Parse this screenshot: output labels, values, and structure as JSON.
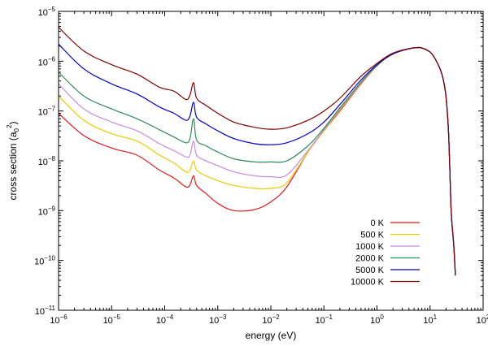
{
  "chart_data": {
    "type": "line",
    "title": "",
    "xlabel": "energy (eV)",
    "ylabel": {
      "main": "cross section (a",
      "sub": "0",
      "sup": "2",
      "close": ")"
    },
    "x_scale": "log",
    "y_scale": "log",
    "xlim": [
      1e-06,
      100
    ],
    "ylim": [
      1e-11,
      1e-05
    ],
    "x_ticks": [
      {
        "value": 1e-06,
        "base": "10",
        "exp": "−6"
      },
      {
        "value": 1e-05,
        "base": "10",
        "exp": "−5"
      },
      {
        "value": 0.0001,
        "base": "10",
        "exp": "−4"
      },
      {
        "value": 0.001,
        "base": "10",
        "exp": "−3"
      },
      {
        "value": 0.01,
        "base": "10",
        "exp": "−2"
      },
      {
        "value": 0.1,
        "base": "10",
        "exp": "−1"
      },
      {
        "value": 1,
        "base": "10",
        "exp": "0"
      },
      {
        "value": 10,
        "base": "10",
        "exp": "1"
      },
      {
        "value": 100,
        "base": "10",
        "exp": "2"
      }
    ],
    "y_ticks": [
      {
        "value": 1e-11,
        "base": "10",
        "exp": "−11"
      },
      {
        "value": 1e-10,
        "base": "10",
        "exp": "−10"
      },
      {
        "value": 1e-09,
        "base": "10",
        "exp": "−9"
      },
      {
        "value": 1e-08,
        "base": "10",
        "exp": "−8"
      },
      {
        "value": 1e-07,
        "base": "10",
        "exp": "−7"
      },
      {
        "value": 1e-06,
        "base": "10",
        "exp": "−6"
      },
      {
        "value": 1e-05,
        "base": "10",
        "exp": "−5"
      }
    ],
    "legend_position": "lower-right",
    "x": [
      1e-06,
      3e-06,
      1e-05,
      3e-05,
      8e-05,
      0.00015,
      0.00025,
      0.0003,
      0.00035,
      0.0004,
      0.0006,
      0.001,
      0.002,
      0.005,
      0.01,
      0.02,
      0.05,
      0.1,
      0.2,
      0.5,
      1,
      2,
      5,
      8,
      12,
      18,
      22,
      25,
      28,
      30
    ],
    "series": [
      {
        "name": "0 K",
        "color": "#e41a1c",
        "values": [
          9e-08,
          3.2e-08,
          1.8e-08,
          1.3e-08,
          6.5e-09,
          4.5e-09,
          3e-09,
          3.3e-09,
          5e-09,
          3.2e-09,
          2.2e-09,
          1.4e-09,
          1e-09,
          1.05e-09,
          1.5e-09,
          3e-09,
          1.5e-08,
          4e-08,
          1e-07,
          3.5e-07,
          8e-07,
          1.4e-06,
          1.85e-06,
          1.75e-06,
          1.2e-06,
          4e-07,
          5e-08,
          1e-09,
          2e-10,
          5e-11
        ]
      },
      {
        "name": "500 K",
        "color": "#f2c800",
        "values": [
          2e-07,
          6.5e-08,
          3.5e-08,
          2.5e-08,
          1.3e-08,
          9e-09,
          6e-09,
          6.5e-09,
          1e-08,
          6.5e-09,
          5e-09,
          4e-09,
          3.2e-09,
          2.8e-09,
          2.8e-09,
          3.6e-09,
          1.5e-08,
          4e-08,
          1.05e-07,
          3.6e-07,
          8e-07,
          1.4e-06,
          1.85e-06,
          1.75e-06,
          1.2e-06,
          4e-07,
          5e-08,
          1e-09,
          2e-10,
          5e-11
        ]
      },
      {
        "name": "1000 K",
        "color": "#c58be0",
        "values": [
          3.5e-07,
          1.1e-07,
          6e-08,
          4e-08,
          2.2e-08,
          1.6e-08,
          1.2e-08,
          1.3e-08,
          2.5e-08,
          1.3e-08,
          1e-08,
          8e-09,
          6e-09,
          5e-09,
          4.8e-09,
          5.2e-09,
          1.6e-08,
          4.2e-08,
          1.1e-07,
          3.7e-07,
          8.1e-07,
          1.4e-06,
          1.85e-06,
          1.75e-06,
          1.2e-06,
          4e-07,
          5e-08,
          1e-09,
          2e-10,
          5e-11
        ]
      },
      {
        "name": "2000 K",
        "color": "#2e8b57",
        "values": [
          6e-07,
          2e-07,
          1.1e-07,
          7e-08,
          4.2e-08,
          3e-08,
          2.3e-08,
          2.8e-08,
          7e-08,
          2.6e-08,
          2e-08,
          1.5e-08,
          1.1e-08,
          9.5e-09,
          9.5e-09,
          1e-08,
          2e-08,
          4.5e-08,
          1.15e-07,
          3.8e-07,
          8.2e-07,
          1.4e-06,
          1.85e-06,
          1.75e-06,
          1.2e-06,
          4e-07,
          5e-08,
          1e-09,
          2e-10,
          5e-11
        ]
      },
      {
        "name": "5000 K",
        "color": "#0000cc",
        "values": [
          2.2e-06,
          7e-07,
          3.5e-07,
          2.2e-07,
          1.2e-07,
          9e-08,
          6.5e-08,
          8e-08,
          1.5e-07,
          7.5e-08,
          5.5e-08,
          4e-08,
          2.8e-08,
          2.2e-08,
          2.1e-08,
          2.3e-08,
          3.5e-08,
          6e-08,
          1.35e-07,
          4.2e-07,
          8.5e-07,
          1.4e-06,
          1.85e-06,
          1.75e-06,
          1.2e-06,
          4e-07,
          5e-08,
          1e-09,
          2e-10,
          5e-11
        ]
      },
      {
        "name": "10000 K",
        "color": "#800000",
        "values": [
          4.8e-06,
          1.6e-06,
          8.5e-07,
          5.5e-07,
          3e-07,
          2.5e-07,
          1.7e-07,
          2.1e-07,
          3.7e-07,
          1.8e-07,
          1.3e-07,
          9e-08,
          6e-08,
          4.7e-08,
          4.3e-08,
          4.6e-08,
          6.5e-08,
          1e-07,
          1.8e-07,
          5e-07,
          9e-07,
          1.45e-06,
          1.85e-06,
          1.75e-06,
          1.2e-06,
          4e-07,
          5e-08,
          1e-09,
          2e-10,
          5e-11
        ]
      }
    ]
  }
}
